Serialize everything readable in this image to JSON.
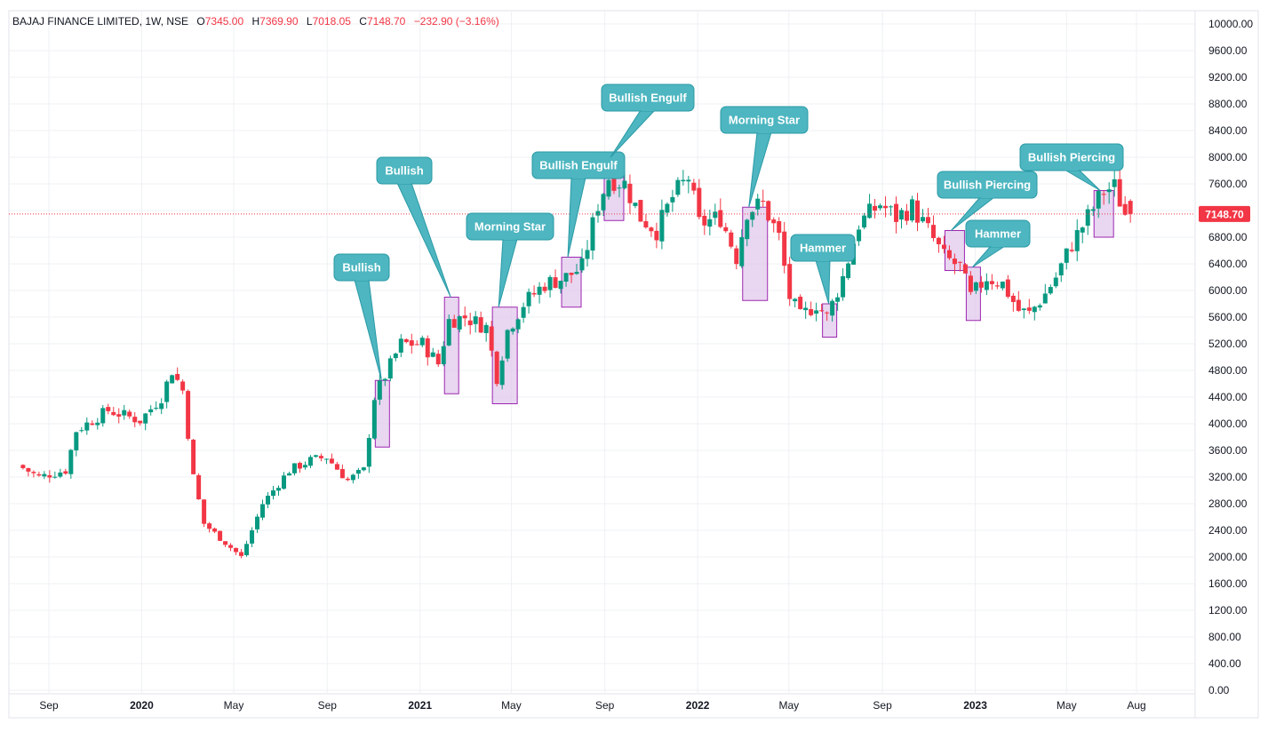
{
  "header": {
    "symbol": "BAJAJ FINANCE LIMITED, 1W, NSE",
    "o_label": "O",
    "o_value": "7345.00",
    "h_label": "H",
    "h_value": "7369.90",
    "l_label": "L",
    "l_value": "7018.05",
    "c_label": "C",
    "c_value": "7148.70",
    "change": "−232.90 (−3.16%)"
  },
  "last_price_label": "7148.70",
  "colors": {
    "up": "#089981",
    "down": "#f23645",
    "callout": "#4db6c0",
    "callout_border": "#2a9aa6",
    "highlight_fill": "#e1c8ec",
    "highlight_border": "#9c27b0",
    "grid": "#eef0f3",
    "price_line": "#f23645"
  },
  "chart_data": {
    "type": "candlestick",
    "title": "BAJAJ FINANCE LIMITED, 1W, NSE",
    "xlabel": "",
    "ylabel": "",
    "ylim": [
      0,
      10000
    ],
    "grid": true,
    "y_ticks": [
      "10000.00",
      "9600.00",
      "9200.00",
      "8800.00",
      "8400.00",
      "8000.00",
      "7600.00",
      "7200.00",
      "6800.00",
      "6400.00",
      "6000.00",
      "5600.00",
      "5200.00",
      "4800.00",
      "4400.00",
      "4000.00",
      "3600.00",
      "3200.00",
      "2800.00",
      "2400.00",
      "2000.00",
      "1600.00",
      "1200.00",
      "800.00",
      "400.00",
      "0.00"
    ],
    "x_ticks": [
      {
        "label": "Sep",
        "date": "2019-09",
        "bold": false
      },
      {
        "label": "2020",
        "date": "2020-01",
        "bold": true
      },
      {
        "label": "May",
        "date": "2020-05",
        "bold": false
      },
      {
        "label": "Sep",
        "date": "2020-09",
        "bold": false
      },
      {
        "label": "2021",
        "date": "2021-01",
        "bold": true
      },
      {
        "label": "May",
        "date": "2021-05",
        "bold": false
      },
      {
        "label": "Sep",
        "date": "2021-09",
        "bold": false
      },
      {
        "label": "2022",
        "date": "2022-01",
        "bold": true
      },
      {
        "label": "May",
        "date": "2022-05",
        "bold": false
      },
      {
        "label": "Sep",
        "date": "2022-09",
        "bold": false
      },
      {
        "label": "2023",
        "date": "2023-01",
        "bold": true
      },
      {
        "label": "May",
        "date": "2023-05",
        "bold": false
      },
      {
        "label": "Aug",
        "date": "2023-08",
        "bold": false
      }
    ],
    "anchors": [
      {
        "date": "2019-07-29",
        "price": 3380
      },
      {
        "date": "2019-08-26",
        "price": 3200
      },
      {
        "date": "2019-09-30",
        "price": 3300
      },
      {
        "date": "2019-10-14",
        "price": 3900
      },
      {
        "date": "2019-11-25",
        "price": 4200
      },
      {
        "date": "2020-01-06",
        "price": 4050
      },
      {
        "date": "2020-02-03",
        "price": 4400
      },
      {
        "date": "2020-02-17",
        "price": 4800
      },
      {
        "date": "2020-03-02",
        "price": 4500
      },
      {
        "date": "2020-03-16",
        "price": 3200
      },
      {
        "date": "2020-03-30",
        "price": 2500
      },
      {
        "date": "2020-05-18",
        "price": 2000
      },
      {
        "date": "2020-06-15",
        "price": 2800
      },
      {
        "date": "2020-07-20",
        "price": 3300
      },
      {
        "date": "2020-08-17",
        "price": 3450
      },
      {
        "date": "2020-09-07",
        "price": 3500
      },
      {
        "date": "2020-10-05",
        "price": 3150
      },
      {
        "date": "2020-10-26",
        "price": 3300
      },
      {
        "date": "2020-11-09",
        "price": 4400
      },
      {
        "date": "2020-12-14",
        "price": 5200
      },
      {
        "date": "2021-01-11",
        "price": 5200
      },
      {
        "date": "2021-02-01",
        "price": 4900
      },
      {
        "date": "2021-02-15",
        "price": 5550
      },
      {
        "date": "2021-03-08",
        "price": 5600
      },
      {
        "date": "2021-04-05",
        "price": 5450
      },
      {
        "date": "2021-04-19",
        "price": 4700
      },
      {
        "date": "2021-05-03",
        "price": 5400
      },
      {
        "date": "2021-05-24",
        "price": 5800
      },
      {
        "date": "2021-06-21",
        "price": 6100
      },
      {
        "date": "2021-07-19",
        "price": 6200
      },
      {
        "date": "2021-08-09",
        "price": 6350
      },
      {
        "date": "2021-08-30",
        "price": 7300
      },
      {
        "date": "2021-09-13",
        "price": 7700
      },
      {
        "date": "2021-10-04",
        "price": 7600
      },
      {
        "date": "2021-10-25",
        "price": 7100
      },
      {
        "date": "2021-11-15",
        "price": 6900
      },
      {
        "date": "2021-12-06",
        "price": 7400
      },
      {
        "date": "2021-12-27",
        "price": 7700
      },
      {
        "date": "2022-01-10",
        "price": 7000
      },
      {
        "date": "2022-02-07",
        "price": 7100
      },
      {
        "date": "2022-02-28",
        "price": 6500
      },
      {
        "date": "2022-03-14",
        "price": 7200
      },
      {
        "date": "2022-04-04",
        "price": 7300
      },
      {
        "date": "2022-04-25",
        "price": 6800
      },
      {
        "date": "2022-05-09",
        "price": 5900
      },
      {
        "date": "2022-05-23",
        "price": 5600
      },
      {
        "date": "2022-06-13",
        "price": 5800
      },
      {
        "date": "2022-06-27",
        "price": 5600
      },
      {
        "date": "2022-07-18",
        "price": 6200
      },
      {
        "date": "2022-08-08",
        "price": 7000
      },
      {
        "date": "2022-09-05",
        "price": 7300
      },
      {
        "date": "2022-09-26",
        "price": 7100
      },
      {
        "date": "2022-10-17",
        "price": 7250
      },
      {
        "date": "2022-11-07",
        "price": 6900
      },
      {
        "date": "2022-11-28",
        "price": 6500
      },
      {
        "date": "2022-12-19",
        "price": 6350
      },
      {
        "date": "2023-01-02",
        "price": 5900
      },
      {
        "date": "2023-01-23",
        "price": 6200
      },
      {
        "date": "2023-02-13",
        "price": 6100
      },
      {
        "date": "2023-03-06",
        "price": 5700
      },
      {
        "date": "2023-03-20",
        "price": 5650
      },
      {
        "date": "2023-04-10",
        "price": 5950
      },
      {
        "date": "2023-04-24",
        "price": 6200
      },
      {
        "date": "2023-05-15",
        "price": 6700
      },
      {
        "date": "2023-06-05",
        "price": 7100
      },
      {
        "date": "2023-06-26",
        "price": 7500
      },
      {
        "date": "2023-07-10",
        "price": 7550
      },
      {
        "date": "2023-07-24",
        "price": 7148.7
      }
    ],
    "last_candle": {
      "date": "2023-07-24",
      "open": 7345.0,
      "high": 7369.9,
      "low": 7018.05,
      "close": 7148.7
    },
    "last_price": 7148.7,
    "annotations": [
      {
        "label": "Bullish",
        "date": "2020-11-09",
        "box_weeks": 2,
        "box_low": 3650,
        "box_high": 4650
      },
      {
        "label": "Bullish",
        "date": "2021-02-08",
        "box_weeks": 2,
        "box_low": 4450,
        "box_high": 5900
      },
      {
        "label": "Morning Star",
        "date": "2021-04-12",
        "box_weeks": 4,
        "box_low": 4300,
        "box_high": 5750
      },
      {
        "label": "Bullish Engulf",
        "date": "2021-07-12",
        "box_weeks": 3,
        "box_low": 5750,
        "box_high": 6500
      },
      {
        "label": "Bullish Engulf",
        "date": "2021-09-06",
        "box_weeks": 3,
        "box_low": 7050,
        "box_high": 8000
      },
      {
        "label": "Morning Star",
        "date": "2022-03-07",
        "box_weeks": 4,
        "box_low": 5850,
        "box_high": 7250
      },
      {
        "label": "Hammer",
        "date": "2022-06-20",
        "box_weeks": 2,
        "box_low": 5300,
        "box_high": 5800
      },
      {
        "label": "Bullish Piercing",
        "date": "2022-11-28",
        "box_weeks": 3,
        "box_low": 6300,
        "box_high": 6900
      },
      {
        "label": "Hammer",
        "date": "2022-12-26",
        "box_weeks": 2,
        "box_low": 5550,
        "box_high": 6350
      },
      {
        "label": "Bullish Piercing",
        "date": "2023-06-12",
        "box_weeks": 3,
        "box_low": 6800,
        "box_high": 7500
      }
    ]
  }
}
